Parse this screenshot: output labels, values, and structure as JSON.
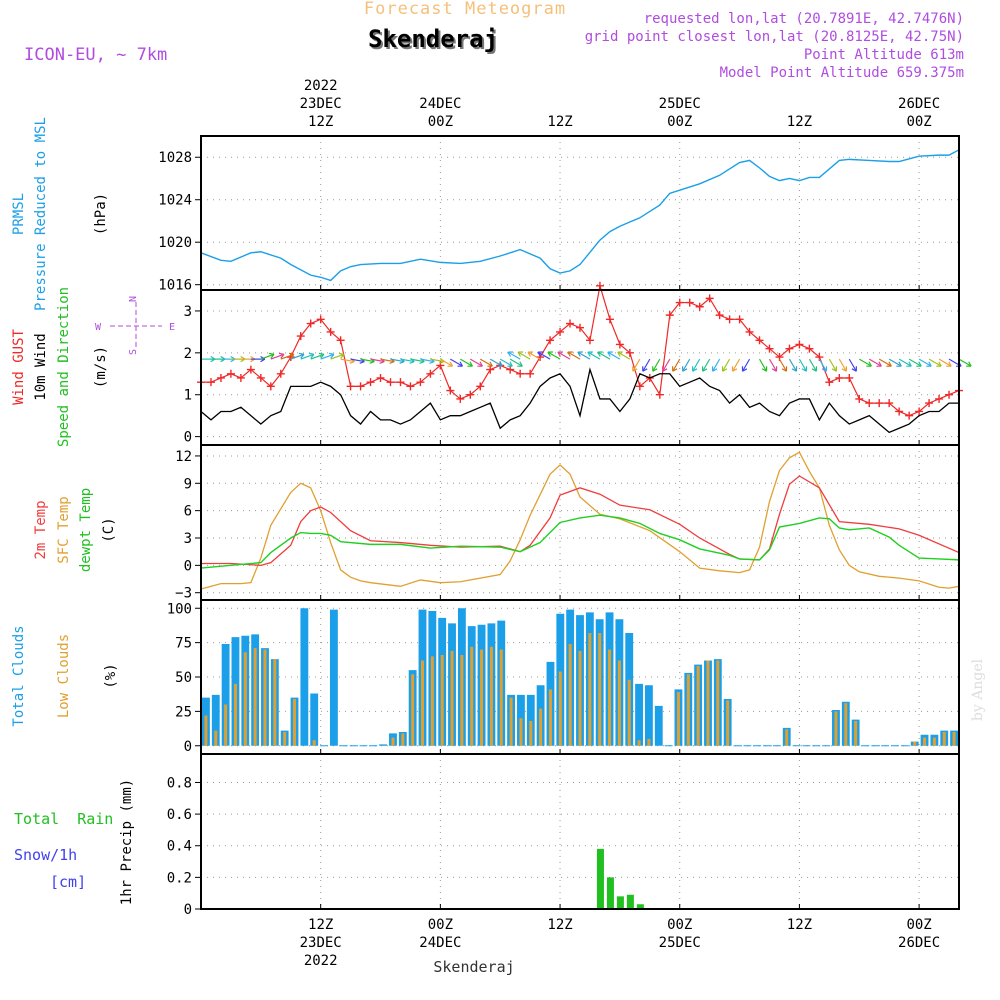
{
  "header": {
    "title": "Skenderaj",
    "subtitle": "Forecast Meteogram",
    "model": "ICON-EU, ~ 7km",
    "requested": "requested lon,lat (20.7891E, 42.7476N)",
    "gridpoint": "grid point closest lon,lat (20.8125E, 42.75N)",
    "point_alt": "Point Altitude 613m",
    "model_alt": "Model Point Altitude 659.375m",
    "footer": "Skenderaj",
    "watermark": "by Angel"
  },
  "colors": {
    "prmsl": "#1a9fe8",
    "gust": "#f02828",
    "wind": "#000000",
    "temp2m": "#f03c3c",
    "sfc": "#e0a030",
    "dewpt": "#20d020",
    "total_clouds": "#1a9fe8",
    "low_clouds": "#e0a030",
    "rain": "#20c020",
    "snow": "#4040f0",
    "purple": "#b04ce0"
  },
  "time_axis": {
    "top_labels": [
      {
        "hour": 12,
        "lines": [
          "2022",
          "23DEC",
          "12Z"
        ]
      },
      {
        "hour": 24,
        "lines": [
          "24DEC",
          "00Z"
        ]
      },
      {
        "hour": 36,
        "lines": [
          "12Z"
        ]
      },
      {
        "hour": 48,
        "lines": [
          "25DEC",
          "00Z"
        ]
      },
      {
        "hour": 60,
        "lines": [
          "12Z"
        ]
      },
      {
        "hour": 72,
        "lines": [
          "26DEC",
          "00Z"
        ]
      }
    ],
    "bottom_labels": [
      {
        "hour": 12,
        "lines": [
          "12Z",
          "23DEC",
          "2022"
        ]
      },
      {
        "hour": 24,
        "lines": [
          "00Z",
          "24DEC"
        ]
      },
      {
        "hour": 36,
        "lines": [
          "12Z"
        ]
      },
      {
        "hour": 48,
        "lines": [
          "00Z",
          "25DEC"
        ]
      },
      {
        "hour": 60,
        "lines": [
          "12Z"
        ]
      },
      {
        "hour": 72,
        "lines": [
          "00Z",
          "26DEC"
        ]
      }
    ]
  },
  "panels": {
    "pressure": {
      "label1": "PRMSL",
      "label2": "Pressure Reduced to MSL",
      "unit": "(hPa)"
    },
    "wind": {
      "label_gust": "Wind GUST",
      "label_10m": "10m Wind",
      "label_speed": "Speed and Direction",
      "unit": "(m/s)",
      "compass": [
        "N",
        "E",
        "S",
        "W"
      ]
    },
    "temp": {
      "label_2m": "2m Temp",
      "label_sfc": "SFC Temp",
      "label_dew": "dewpt Temp",
      "unit": "(C)"
    },
    "clouds": {
      "label_total": "Total Clouds",
      "label_low": "Low Clouds",
      "unit": "(%)"
    },
    "precip": {
      "label_rain": "Total  Rain",
      "label_snow": "Snow/1h",
      "label_cm": "[cm]",
      "label_axis": "1hr Precip (mm)"
    }
  },
  "chart_data": [
    {
      "type": "line",
      "title": "PRMSL Pressure Reduced to MSL",
      "ylabel": "(hPa)",
      "x_range": [
        0,
        76
      ],
      "ylim": [
        1015.5,
        1030
      ],
      "yticks": [
        1016,
        1020,
        1024,
        1028
      ],
      "series": [
        {
          "name": "PRMSL",
          "x": [
            0,
            2,
            3,
            5,
            6,
            8,
            9,
            11,
            12,
            13,
            14,
            15,
            16,
            18,
            20,
            22,
            24,
            26,
            28,
            30,
            32,
            34,
            35,
            36,
            37,
            38,
            40,
            41,
            42,
            44,
            46,
            47,
            48,
            50,
            52,
            54,
            55,
            56,
            57,
            58,
            59,
            60,
            61,
            62,
            64,
            65,
            67,
            69,
            70,
            72,
            74,
            75,
            76
          ],
          "values": [
            1019.0,
            1018.3,
            1018.2,
            1019.0,
            1019.1,
            1018.5,
            1017.9,
            1016.9,
            1016.7,
            1016.4,
            1017.3,
            1017.7,
            1017.9,
            1018.0,
            1018.0,
            1018.4,
            1018.1,
            1018.0,
            1018.2,
            1018.7,
            1019.3,
            1018.5,
            1017.5,
            1017.1,
            1017.3,
            1017.9,
            1020.2,
            1021.0,
            1021.5,
            1022.3,
            1023.5,
            1024.6,
            1024.9,
            1025.5,
            1026.3,
            1027.5,
            1027.7,
            1027.0,
            1026.2,
            1025.8,
            1026.0,
            1025.8,
            1026.1,
            1026.1,
            1027.7,
            1027.8,
            1027.7,
            1027.6,
            1027.6,
            1028.1,
            1028.2,
            1028.2,
            1028.7
          ]
        }
      ]
    },
    {
      "type": "line",
      "title": "Wind GUST / 10m Wind Speed and Direction",
      "ylabel": "(m/s)",
      "x_range": [
        0,
        76
      ],
      "ylim": [
        -0.2,
        3.5
      ],
      "yticks": [
        0,
        1,
        2,
        3
      ],
      "series": [
        {
          "name": "Wind GUST",
          "x": [
            0,
            1,
            2,
            3,
            4,
            5,
            6,
            7,
            8,
            9,
            10,
            11,
            12,
            13,
            14,
            15,
            16,
            17,
            18,
            19,
            20,
            21,
            22,
            23,
            24,
            25,
            26,
            27,
            28,
            29,
            30,
            31,
            32,
            33,
            34,
            35,
            36,
            37,
            38,
            39,
            40,
            41,
            42,
            43,
            44,
            45,
            46,
            47,
            48,
            49,
            50,
            51,
            52,
            53,
            54,
            55,
            56,
            57,
            58,
            59,
            60,
            61,
            62,
            63,
            64,
            65,
            66,
            67,
            68,
            69,
            70,
            71,
            72,
            73,
            74,
            75,
            76
          ],
          "values": [
            1.3,
            1.3,
            1.4,
            1.5,
            1.4,
            1.6,
            1.4,
            1.2,
            1.5,
            1.9,
            2.4,
            2.7,
            2.8,
            2.5,
            2.3,
            1.2,
            1.2,
            1.3,
            1.4,
            1.3,
            1.3,
            1.2,
            1.3,
            1.5,
            1.7,
            1.1,
            0.9,
            1.0,
            1.2,
            1.6,
            1.7,
            1.6,
            1.5,
            1.5,
            1.9,
            2.3,
            2.5,
            2.7,
            2.6,
            2.3,
            3.6,
            2.8,
            2.2,
            2.0,
            1.2,
            1.4,
            1.0,
            2.9,
            3.2,
            3.2,
            3.1,
            3.3,
            2.9,
            2.8,
            2.8,
            2.5,
            2.3,
            2.1,
            1.9,
            2.1,
            2.2,
            2.1,
            1.9,
            1.3,
            1.4,
            1.4,
            0.9,
            0.8,
            0.8,
            0.8,
            0.6,
            0.5,
            0.6,
            0.8,
            0.9,
            1.0,
            1.1
          ]
        },
        {
          "name": "10m Wind",
          "x": [
            0,
            1,
            2,
            3,
            4,
            5,
            6,
            7,
            8,
            9,
            10,
            11,
            12,
            13,
            14,
            15,
            16,
            17,
            18,
            19,
            20,
            21,
            22,
            23,
            24,
            25,
            26,
            27,
            28,
            29,
            30,
            31,
            32,
            33,
            34,
            35,
            36,
            37,
            38,
            39,
            40,
            41,
            42,
            43,
            44,
            45,
            46,
            47,
            48,
            49,
            50,
            51,
            52,
            53,
            54,
            55,
            56,
            57,
            58,
            59,
            60,
            61,
            62,
            63,
            64,
            65,
            66,
            67,
            68,
            69,
            70,
            71,
            72,
            73,
            74,
            75,
            76
          ],
          "values": [
            0.6,
            0.4,
            0.6,
            0.6,
            0.7,
            0.5,
            0.3,
            0.5,
            0.6,
            1.2,
            1.2,
            1.2,
            1.3,
            1.2,
            1.0,
            0.5,
            0.3,
            0.6,
            0.4,
            0.4,
            0.3,
            0.4,
            0.6,
            0.8,
            0.4,
            0.5,
            0.5,
            0.6,
            0.7,
            0.8,
            0.2,
            0.4,
            0.5,
            0.8,
            1.2,
            1.4,
            1.5,
            1.2,
            0.5,
            1.6,
            0.9,
            0.9,
            0.6,
            0.9,
            1.5,
            1.4,
            1.5,
            1.5,
            1.2,
            1.3,
            1.4,
            1.2,
            1.1,
            0.8,
            1.0,
            0.7,
            0.8,
            0.6,
            0.5,
            0.8,
            0.9,
            0.9,
            0.4,
            0.8,
            0.5,
            0.3,
            0.4,
            0.5,
            0.3,
            0.1,
            0.2,
            0.3,
            0.5,
            0.6,
            0.6,
            0.8,
            0.8
          ]
        }
      ]
    },
    {
      "type": "line",
      "title": "2m Temp / SFC Temp / dewpt Temp",
      "ylabel": "(C)",
      "x_range": [
        0,
        76
      ],
      "ylim": [
        -3.8,
        13.2
      ],
      "yticks": [
        -3,
        0,
        3,
        6,
        9,
        12
      ],
      "series": [
        {
          "name": "2m Temp",
          "x": [
            0,
            3,
            6,
            7,
            9,
            10,
            11,
            12,
            13,
            15,
            17,
            20,
            23,
            26,
            30,
            32,
            33,
            35,
            36,
            38,
            40,
            42,
            45,
            48,
            50,
            53,
            54,
            56,
            57,
            58,
            59,
            60,
            62,
            64,
            67,
            70,
            72,
            76
          ],
          "values": [
            0.2,
            0.2,
            0.0,
            0.3,
            2.2,
            4.8,
            6.0,
            6.4,
            5.8,
            3.8,
            2.7,
            2.5,
            2.2,
            2.0,
            2.1,
            1.5,
            2.2,
            5.2,
            7.7,
            8.5,
            7.8,
            6.6,
            6.1,
            4.5,
            3.0,
            1.2,
            0.7,
            0.6,
            1.8,
            5.6,
            8.9,
            9.8,
            8.5,
            4.8,
            4.5,
            4.0,
            3.3,
            1.4
          ]
        },
        {
          "name": "SFC Temp",
          "x": [
            0,
            2,
            4,
            5,
            6,
            7,
            9,
            10,
            11,
            12,
            13,
            14,
            15,
            16,
            17,
            20,
            22,
            24,
            26,
            30,
            31,
            32,
            33,
            35,
            36,
            37,
            38,
            40,
            42,
            45,
            48,
            50,
            52,
            54,
            55,
            56,
            57,
            58,
            59,
            60,
            61,
            62,
            63,
            64,
            65,
            66,
            68,
            70,
            72,
            74,
            75,
            76
          ],
          "values": [
            -2.6,
            -2.0,
            -2.0,
            -1.9,
            0.8,
            4.4,
            8.0,
            9.0,
            8.5,
            6.0,
            2.5,
            -0.5,
            -1.3,
            -1.7,
            -1.9,
            -2.3,
            -1.6,
            -1.9,
            -1.8,
            -1.0,
            0.5,
            2.8,
            5.5,
            10.0,
            11.0,
            10.0,
            7.5,
            5.6,
            5.1,
            3.8,
            1.5,
            -0.3,
            -0.6,
            -0.8,
            -0.5,
            2.0,
            7.0,
            10.4,
            11.8,
            12.4,
            10.3,
            8.5,
            4.4,
            1.7,
            0.0,
            -0.7,
            -1.2,
            -1.4,
            -1.7,
            -2.4,
            -2.5,
            -2.3
          ]
        },
        {
          "name": "dewpt Temp",
          "x": [
            0,
            3,
            6,
            7,
            9,
            10,
            11,
            12,
            13,
            14,
            17,
            20,
            23,
            26,
            30,
            32,
            34,
            36,
            38,
            40,
            42,
            44,
            46,
            48,
            50,
            53,
            54,
            56,
            57,
            58,
            60,
            62,
            63,
            64,
            65,
            67,
            69,
            70,
            72,
            74,
            76
          ],
          "values": [
            -0.3,
            0.0,
            0.3,
            1.4,
            3.0,
            3.6,
            3.5,
            3.5,
            3.3,
            2.6,
            2.3,
            2.3,
            1.9,
            2.1,
            2.0,
            1.5,
            2.5,
            4.7,
            5.2,
            5.5,
            5.2,
            4.6,
            3.5,
            2.8,
            1.8,
            1.1,
            0.7,
            0.6,
            1.7,
            4.2,
            4.6,
            5.2,
            5.1,
            4.1,
            3.9,
            4.1,
            3.1,
            2.2,
            0.8,
            0.7,
            0.6
          ]
        }
      ]
    },
    {
      "type": "bar",
      "title": "Total Clouds / Low Clouds",
      "ylabel": "(%)",
      "x_range": [
        0,
        76
      ],
      "ylim": [
        -6,
        106
      ],
      "yticks": [
        0,
        25,
        50,
        75,
        100
      ],
      "series": [
        {
          "name": "Total Clouds",
          "values": [
            35,
            37,
            74,
            79,
            80,
            81,
            71,
            63,
            11,
            35,
            100,
            38,
            0,
            99,
            0,
            0,
            0,
            0,
            1,
            9,
            10,
            55,
            99,
            98,
            93,
            89,
            100,
            87,
            88,
            89,
            91,
            37,
            37,
            37,
            44,
            61,
            96,
            99,
            95,
            97,
            92,
            97,
            92,
            82,
            45,
            44,
            29,
            0,
            41,
            53,
            59,
            62,
            63,
            34,
            0,
            0,
            0,
            0,
            0,
            13,
            0,
            0,
            0,
            0,
            26,
            32,
            19,
            0,
            0,
            0,
            0,
            0,
            3,
            8,
            8,
            11,
            11
          ]
        },
        {
          "name": "Low Clouds",
          "values": [
            22,
            11,
            30,
            45,
            68,
            71,
            70,
            63,
            10,
            34,
            0,
            4,
            0,
            0,
            0,
            0,
            0,
            0,
            0,
            6,
            9,
            52,
            62,
            65,
            66,
            69,
            66,
            72,
            70,
            72,
            70,
            35,
            20,
            18,
            27,
            41,
            54,
            74,
            69,
            82,
            82,
            70,
            62,
            48,
            4,
            5,
            0,
            0,
            39,
            52,
            58,
            62,
            62,
            33,
            0,
            0,
            0,
            0,
            0,
            12,
            0,
            0,
            0,
            0,
            25,
            31,
            18,
            0,
            0,
            0,
            0,
            0,
            3,
            6,
            6,
            10,
            10
          ]
        }
      ]
    },
    {
      "type": "bar",
      "title": "1hr Precip (mm)",
      "ylabel": "1hr Precip (mm)",
      "x_range": [
        0,
        76
      ],
      "ylim": [
        0,
        0.98
      ],
      "yticks": [
        0,
        0.2,
        0.4,
        0.6,
        0.8
      ],
      "series": [
        {
          "name": "Total Rain",
          "x": [
            40,
            41,
            42,
            43,
            44
          ],
          "values": [
            0.38,
            0.2,
            0.08,
            0.09,
            0.03
          ]
        }
      ]
    }
  ]
}
